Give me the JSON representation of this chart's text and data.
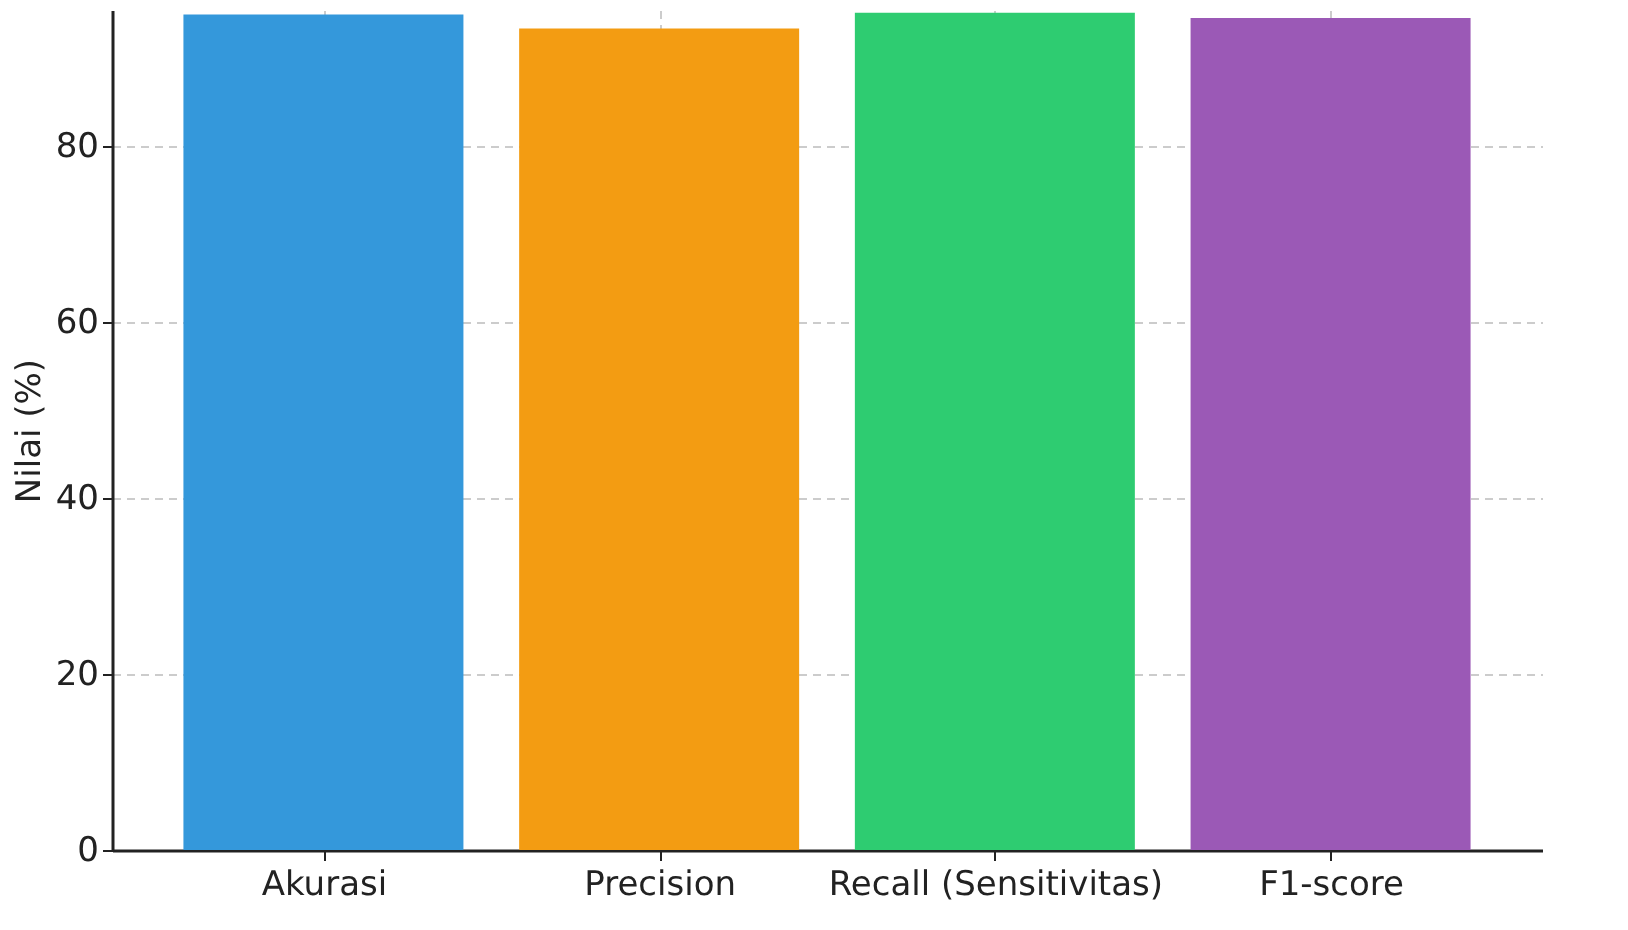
{
  "chart_data": {
    "type": "bar",
    "ylabel": "Nilai (%)",
    "categories": [
      "Akurasi",
      "Precision",
      "Recall (Sensitivitas)",
      "F1-score"
    ],
    "values": [
      94.9,
      93.3,
      95.1,
      94.5
    ],
    "colors": [
      "#3498db",
      "#f39c12",
      "#2ecc71",
      "#9b59b6"
    ],
    "ylim": [
      0,
      95.4
    ],
    "yticks": [
      0,
      20,
      40,
      60,
      80
    ],
    "grid": true
  }
}
